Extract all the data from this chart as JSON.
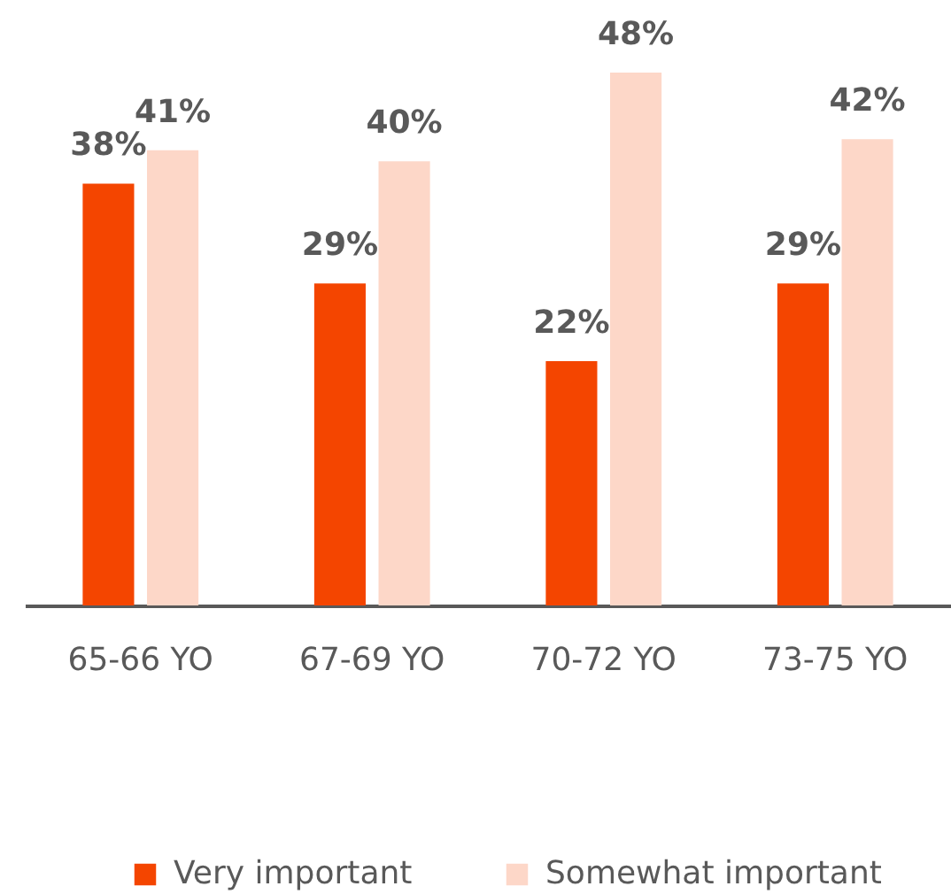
{
  "chart_data": {
    "type": "bar",
    "categories": [
      "65-66 YO",
      "67-69 YO",
      "70-72 YO",
      "73-75 YO"
    ],
    "series": [
      {
        "name": "Very important",
        "color": "#f44500",
        "values": [
          38,
          29,
          22,
          29
        ],
        "value_labels": [
          "38%",
          "29%",
          "22%",
          "29%"
        ]
      },
      {
        "name": "Somewhat important",
        "color": "#fdd7c8",
        "values": [
          41,
          40,
          48,
          42
        ],
        "value_labels": [
          "41%",
          "40%",
          "48%",
          "42%"
        ]
      }
    ],
    "legend": "bottom",
    "tick_labels": "x"
  }
}
